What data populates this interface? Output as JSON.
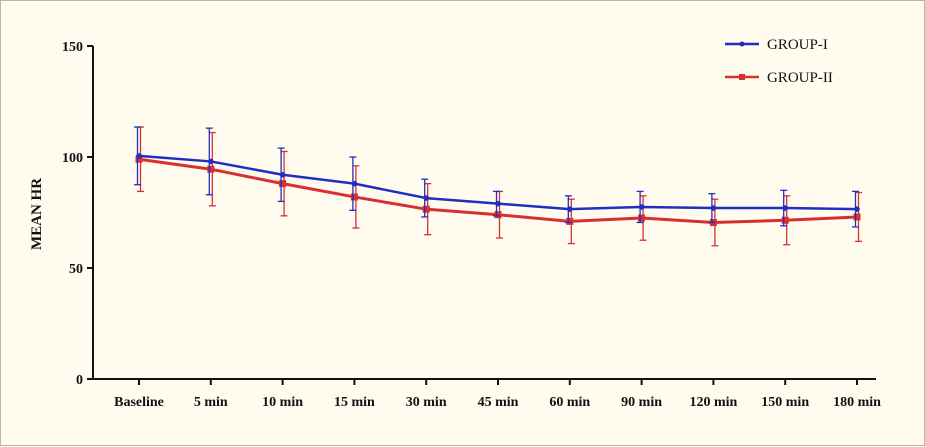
{
  "chart_data": {
    "type": "line",
    "title": "",
    "xlabel": "",
    "ylabel": "MEAN HR",
    "ylim": [
      0,
      150
    ],
    "yticks": [
      0,
      50,
      100,
      150
    ],
    "categories": [
      "Baseline",
      "5 min",
      "10 min",
      "15 min",
      "30 min",
      "45 min",
      "60 min",
      "90 min",
      "120 min",
      "150 min",
      "180 min"
    ],
    "series": [
      {
        "name": "GROUP-I",
        "color": "#1f2fc0",
        "values": [
          100.5,
          98,
          92,
          88,
          81.5,
          79,
          76.5,
          77.5,
          77,
          77,
          76.5
        ],
        "error": [
          13,
          15,
          12,
          12,
          8.5,
          5.5,
          6,
          7,
          6.5,
          8,
          8
        ]
      },
      {
        "name": "GROUP-II",
        "color": "#d83030",
        "values": [
          99,
          94.5,
          88,
          82,
          76.5,
          74,
          71,
          72.5,
          70.5,
          71.5,
          73
        ],
        "error": [
          14.5,
          16.5,
          14.5,
          14,
          11.5,
          10.5,
          10,
          10,
          10.5,
          11,
          11
        ]
      }
    ],
    "grid": false,
    "legend_position": "top-right"
  }
}
